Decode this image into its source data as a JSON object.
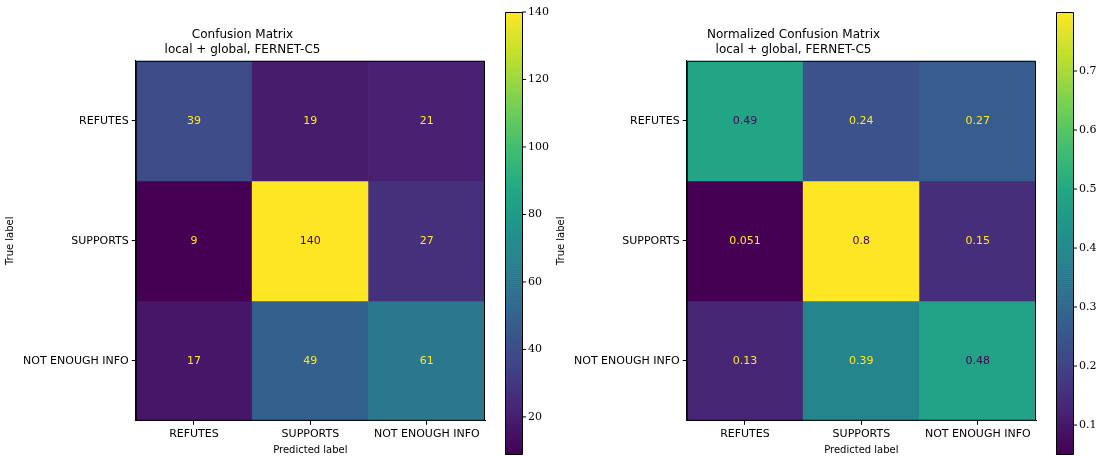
{
  "chart_data": [
    {
      "type": "heatmap",
      "title": "Confusion Matrix",
      "subtitle": "local + global, FERNET-C5",
      "xlabel": "Predicted label",
      "ylabel": "True label",
      "categories": [
        "REFUTES",
        "SUPPORTS",
        "NOT ENOUGH INFO"
      ],
      "y_categories": [
        "REFUTES",
        "SUPPORTS",
        "NOT ENOUGH INFO"
      ],
      "cells": [
        [
          39,
          19,
          21
        ],
        [
          9,
          140,
          27
        ],
        [
          17,
          49,
          61
        ]
      ],
      "data_labels": true,
      "clim": [
        9,
        140
      ],
      "cticks": [
        20,
        40,
        60,
        80,
        100,
        120,
        140
      ]
    },
    {
      "type": "heatmap",
      "title": "Normalized Confusion Matrix",
      "subtitle": "local + global, FERNET-C5",
      "xlabel": "Predicted label",
      "ylabel": "True label",
      "categories": [
        "REFUTES",
        "SUPPORTS",
        "NOT ENOUGH INFO"
      ],
      "y_categories": [
        "REFUTES",
        "SUPPORTS",
        "NOT ENOUGH INFO"
      ],
      "cells": [
        [
          0.49,
          0.24,
          0.27
        ],
        [
          0.051,
          0.8,
          0.15
        ],
        [
          0.13,
          0.39,
          0.48
        ]
      ],
      "data_labels": true,
      "clim": [
        0.051,
        0.8
      ],
      "cticks": [
        0.1,
        0.2,
        0.3,
        0.4,
        0.5,
        0.6,
        0.7
      ]
    }
  ]
}
